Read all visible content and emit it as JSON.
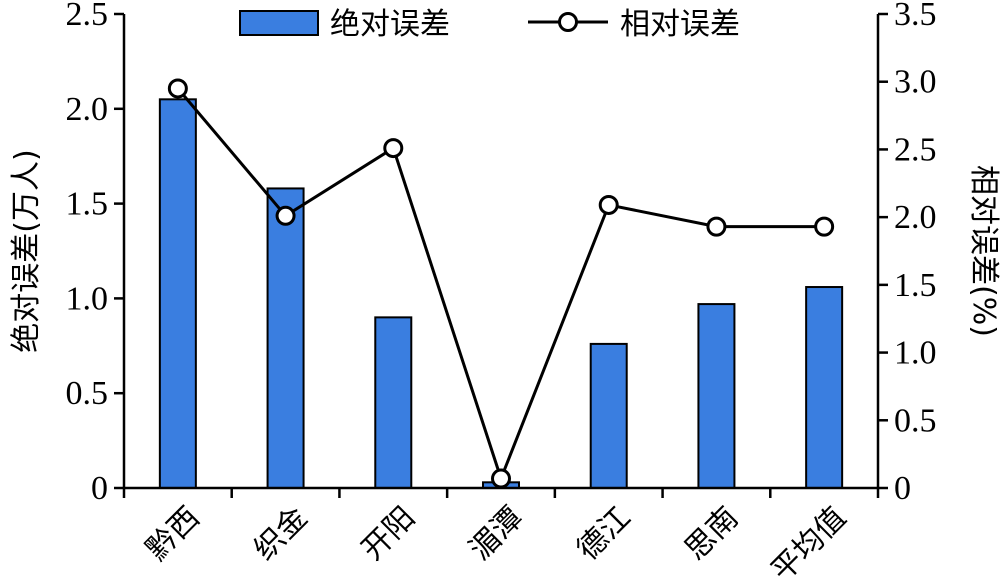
{
  "chart_data": {
    "type": "bar",
    "categories": [
      "黔西",
      "织金",
      "开阳",
      "湄潭",
      "德江",
      "思南",
      "平均值"
    ],
    "series": [
      {
        "name": "绝对误差",
        "type": "bar",
        "axis": "left",
        "values": [
          2.05,
          1.58,
          0.9,
          0.03,
          0.76,
          0.97,
          1.06
        ]
      },
      {
        "name": "相对误差",
        "type": "line",
        "axis": "right",
        "values": [
          2.95,
          2.01,
          2.51,
          0.07,
          2.09,
          1.93,
          1.93
        ]
      }
    ],
    "ylabel": "绝对误差(万人)",
    "y2label": "相对误差(%)",
    "ylim": [
      0,
      2.5
    ],
    "y2lim": [
      0,
      3.5
    ],
    "yticks": [
      "0",
      "0.5",
      "1.0",
      "1.5",
      "2.0",
      "2.5"
    ],
    "y2ticks": [
      "0",
      "0.5",
      "1.0",
      "1.5",
      "2.0",
      "2.5",
      "3.0",
      "3.5"
    ],
    "legend_position": "top",
    "grid": false,
    "colors": {
      "bar": "#3a7ee0",
      "line": "#000000"
    }
  }
}
